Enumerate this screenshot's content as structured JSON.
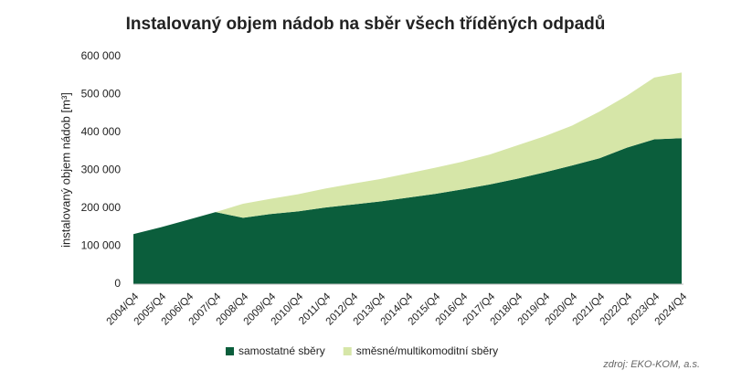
{
  "chart_data": {
    "type": "stacked_area",
    "title": "Instalovaný objem nádob na sběr všech tříděných odpadů",
    "y_label": "instalovaný objem nádob [m³]",
    "source": "zdroj: EKO-KOM, a.s.",
    "categories": [
      "2004/Q4",
      "2005/Q4",
      "2006/Q4",
      "2007/Q4",
      "2008/Q4",
      "2009/Q4",
      "2010/Q4",
      "2011/Q4",
      "2012/Q4",
      "2013/Q4",
      "2014/Q4",
      "2015/Q4",
      "2016/Q4",
      "2017/Q4",
      "2018/Q4",
      "2019/Q4",
      "2020/Q4",
      "2021/Q4",
      "2022/Q4",
      "2023/Q4",
      "2024/Q4"
    ],
    "series": [
      {
        "name": "samostatné sběry",
        "color": "#0b5e3c",
        "values": [
          132000,
          150000,
          170000,
          190000,
          175000,
          185000,
          192000,
          202000,
          210000,
          218000,
          228000,
          238000,
          250000,
          263000,
          278000,
          295000,
          313000,
          332000,
          360000,
          382000,
          385000
        ]
      },
      {
        "name": "směsné/multikomoditní sběry",
        "color": "#d6e6a8",
        "values": [
          0,
          0,
          0,
          0,
          37000,
          40000,
          45000,
          50000,
          55000,
          59000,
          64000,
          69000,
          73000,
          79000,
          88000,
          95000,
          105000,
          123000,
          137000,
          163000,
          173000
        ]
      }
    ],
    "ylim": [
      0,
      600000
    ],
    "yticks": [
      0,
      {
        "value": 100000,
        "label": "100 000"
      },
      {
        "value": 200000,
        "label": "200 000"
      },
      {
        "value": 300000,
        "label": "300 000"
      },
      {
        "value": 400000,
        "label": "400 000"
      },
      {
        "value": 500000,
        "label": "500 000"
      },
      {
        "value": 600000,
        "label": "600 000"
      }
    ],
    "legend": "bottom"
  }
}
